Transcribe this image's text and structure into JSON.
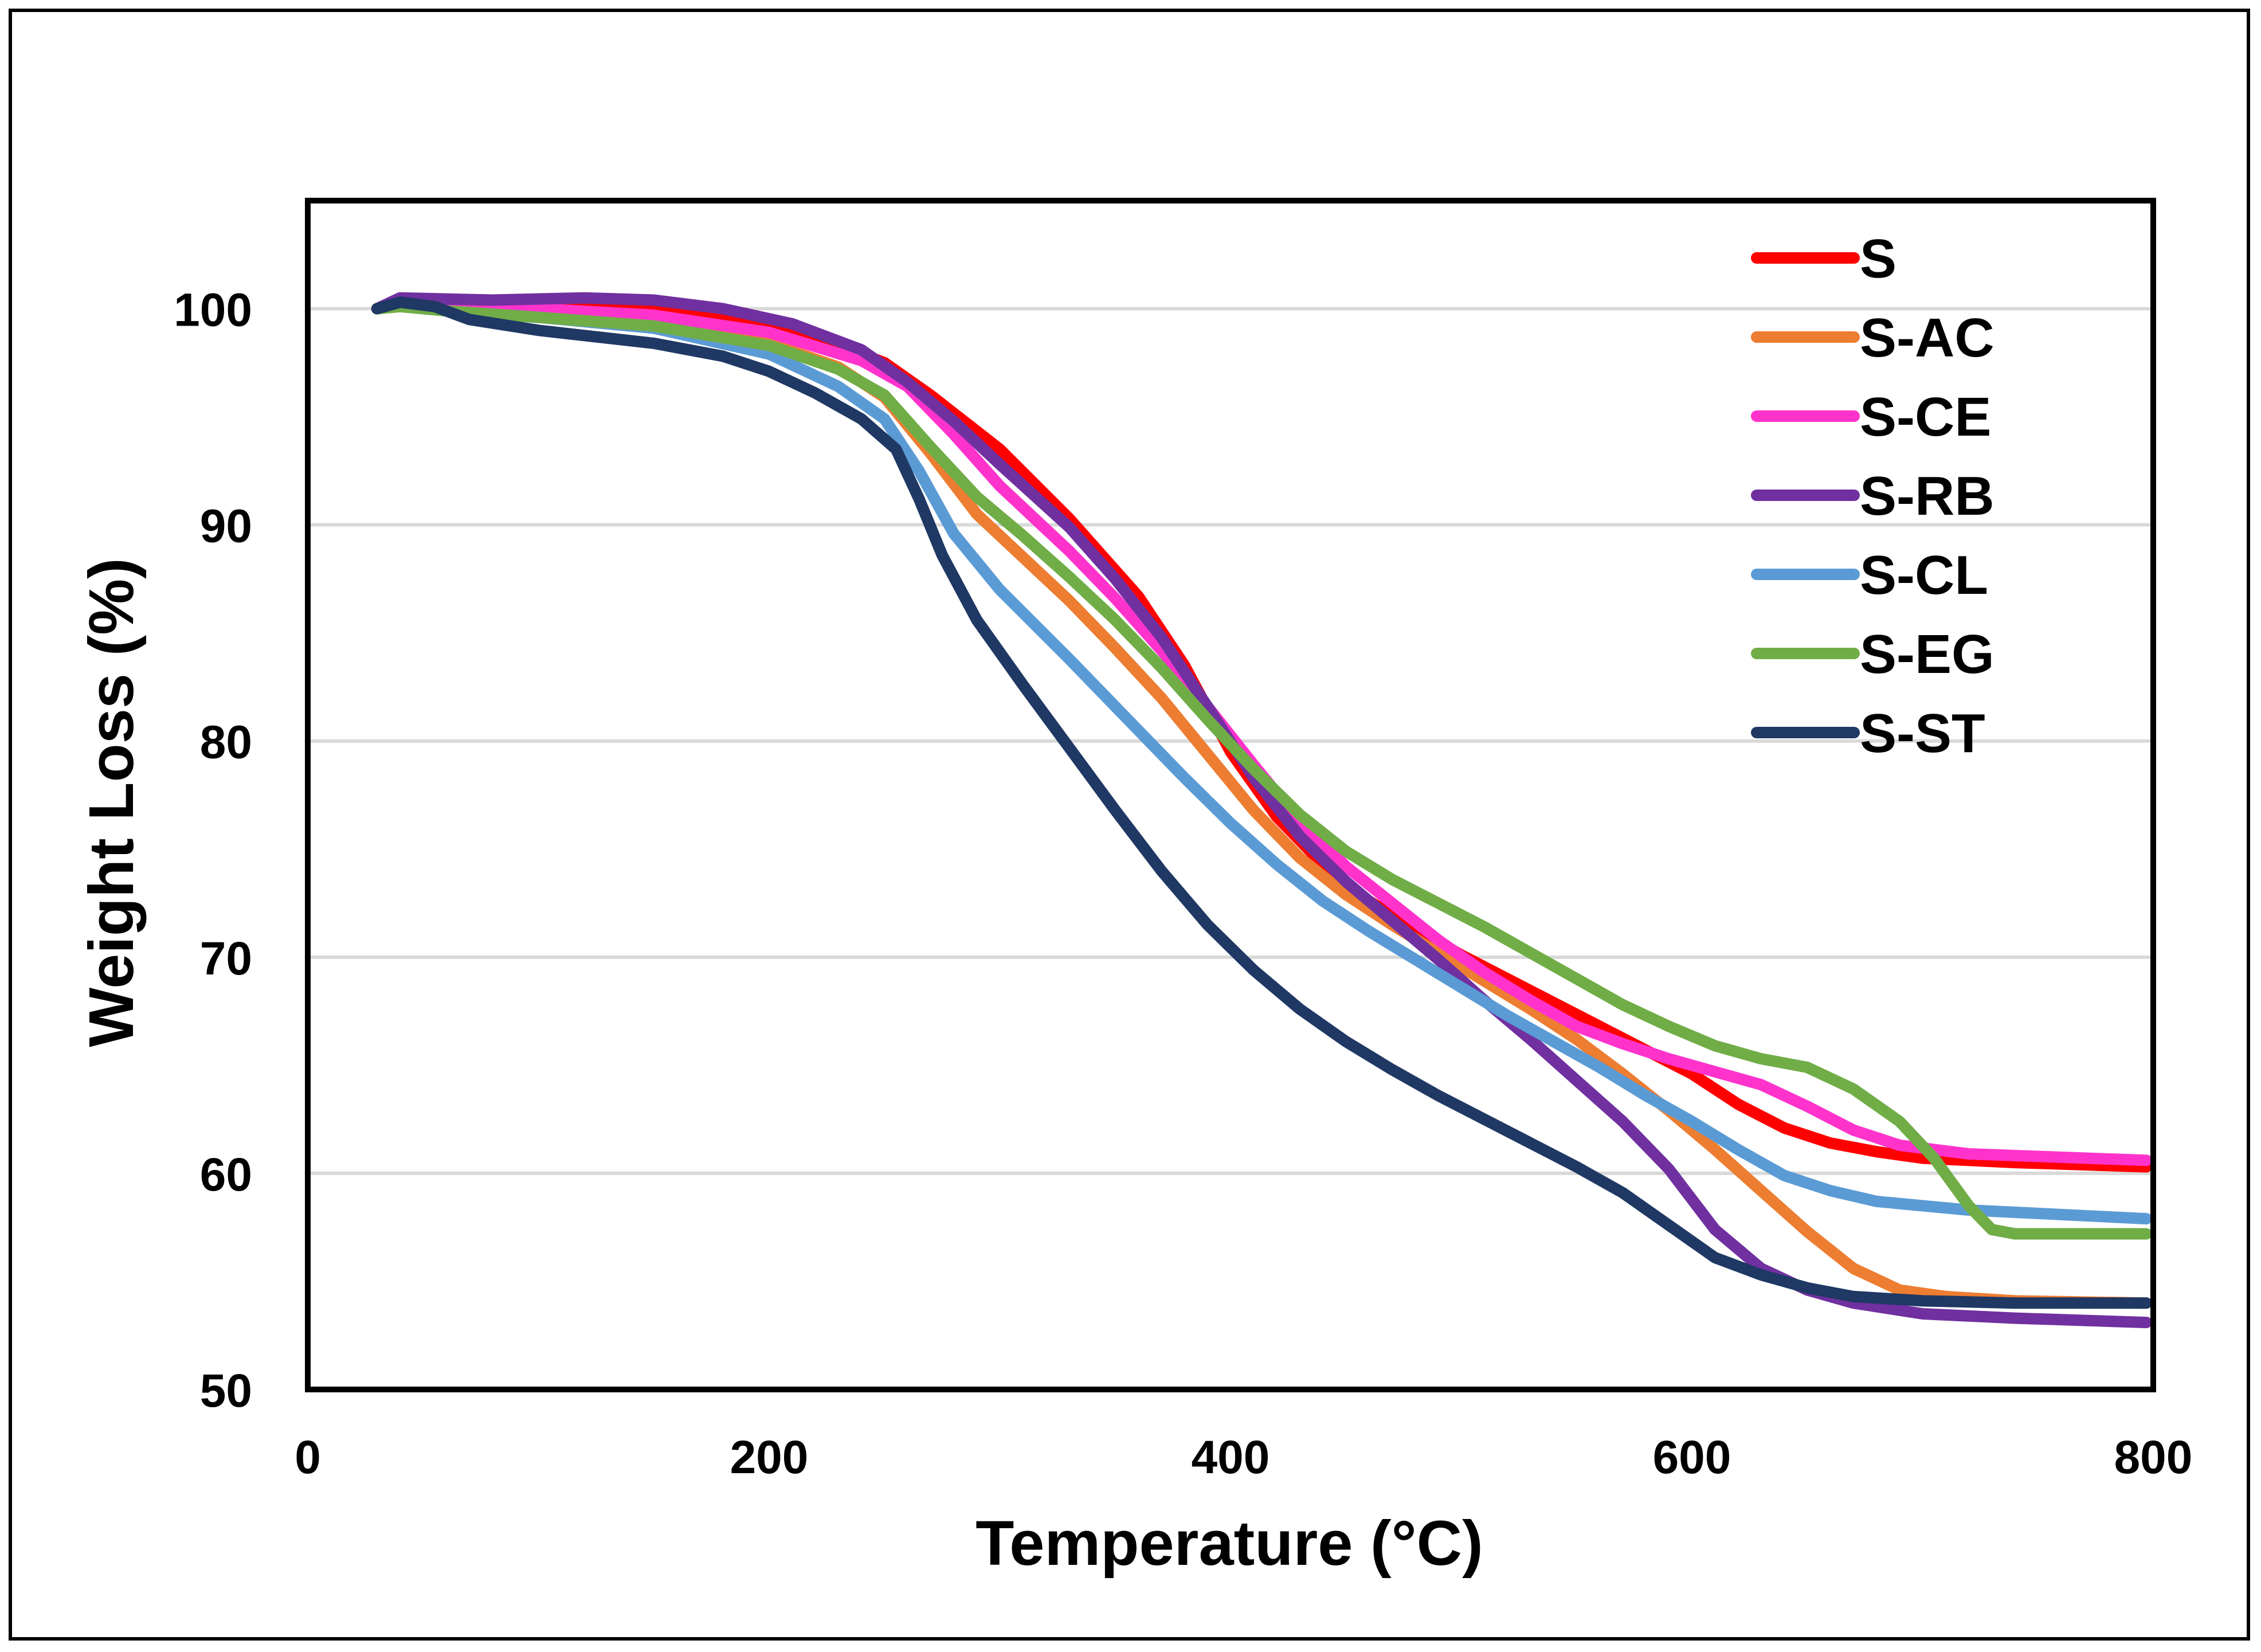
{
  "chart_data": {
    "type": "line",
    "title": "",
    "xlabel": "Temperature (°C)",
    "ylabel": "Weight Loss (%)",
    "xlim": [
      0,
      800
    ],
    "ylim": [
      50,
      105
    ],
    "x_ticks": [
      "0",
      "200",
      "400",
      "600",
      "800"
    ],
    "y_ticks": [
      "50",
      "60",
      "70",
      "80",
      "90",
      "100"
    ],
    "grid": "horizontal",
    "legend_position": "top-right",
    "series": [
      {
        "name": "S",
        "color": "#ff0000",
        "points": [
          [
            30,
            100
          ],
          [
            40,
            100.4
          ],
          [
            60,
            100.2
          ],
          [
            100,
            100.2
          ],
          [
            140,
            100.0
          ],
          [
            180,
            99.6
          ],
          [
            220,
            98.7
          ],
          [
            250,
            97.5
          ],
          [
            270,
            96.0
          ],
          [
            300,
            93.5
          ],
          [
            330,
            90.3
          ],
          [
            360,
            86.7
          ],
          [
            380,
            83.5
          ],
          [
            400,
            79.5
          ],
          [
            420,
            76.5
          ],
          [
            440,
            74.3
          ],
          [
            460,
            72.6
          ],
          [
            480,
            71.3
          ],
          [
            500,
            70.1
          ],
          [
            520,
            69.0
          ],
          [
            540,
            67.9
          ],
          [
            560,
            66.8
          ],
          [
            580,
            65.7
          ],
          [
            600,
            64.6
          ],
          [
            620,
            63.2
          ],
          [
            640,
            62.1
          ],
          [
            660,
            61.4
          ],
          [
            680,
            61.0
          ],
          [
            700,
            60.7
          ],
          [
            740,
            60.5
          ],
          [
            797,
            60.3
          ]
        ]
      },
      {
        "name": "S-AC",
        "color": "#ed7d31",
        "points": [
          [
            30,
            100
          ],
          [
            40,
            100.3
          ],
          [
            60,
            100.0
          ],
          [
            100,
            99.8
          ],
          [
            150,
            99.3
          ],
          [
            200,
            98.4
          ],
          [
            230,
            97.3
          ],
          [
            250,
            95.9
          ],
          [
            270,
            93.3
          ],
          [
            290,
            90.5
          ],
          [
            310,
            88.5
          ],
          [
            330,
            86.5
          ],
          [
            350,
            84.3
          ],
          [
            370,
            82.0
          ],
          [
            390,
            79.4
          ],
          [
            410,
            76.8
          ],
          [
            430,
            74.6
          ],
          [
            450,
            72.9
          ],
          [
            470,
            71.5
          ],
          [
            490,
            70.2
          ],
          [
            510,
            68.9
          ],
          [
            530,
            67.6
          ],
          [
            550,
            66.2
          ],
          [
            570,
            64.6
          ],
          [
            590,
            62.9
          ],
          [
            610,
            61.1
          ],
          [
            630,
            59.2
          ],
          [
            650,
            57.3
          ],
          [
            670,
            55.6
          ],
          [
            690,
            54.6
          ],
          [
            710,
            54.3
          ],
          [
            740,
            54.1
          ],
          [
            797,
            54.0
          ]
        ]
      },
      {
        "name": "S-CE",
        "color": "#ff33cc",
        "points": [
          [
            30,
            100
          ],
          [
            40,
            100.3
          ],
          [
            60,
            100.1
          ],
          [
            100,
            100.0
          ],
          [
            150,
            99.7
          ],
          [
            200,
            98.9
          ],
          [
            240,
            97.6
          ],
          [
            260,
            96.4
          ],
          [
            280,
            94.2
          ],
          [
            300,
            91.8
          ],
          [
            330,
            88.8
          ],
          [
            350,
            86.6
          ],
          [
            370,
            84.2
          ],
          [
            390,
            81.6
          ],
          [
            410,
            78.9
          ],
          [
            430,
            76.3
          ],
          [
            450,
            74.2
          ],
          [
            470,
            72.5
          ],
          [
            490,
            70.8
          ],
          [
            510,
            69.3
          ],
          [
            530,
            68.0
          ],
          [
            550,
            66.8
          ],
          [
            570,
            66.0
          ],
          [
            590,
            65.3
          ],
          [
            610,
            64.7
          ],
          [
            630,
            64.1
          ],
          [
            650,
            63.1
          ],
          [
            670,
            62.0
          ],
          [
            690,
            61.3
          ],
          [
            720,
            60.9
          ],
          [
            797,
            60.6
          ]
        ]
      },
      {
        "name": "S-RB",
        "color": "#7030a0",
        "points": [
          [
            30,
            100
          ],
          [
            40,
            100.5
          ],
          [
            80,
            100.4
          ],
          [
            120,
            100.5
          ],
          [
            150,
            100.4
          ],
          [
            180,
            100.0
          ],
          [
            210,
            99.3
          ],
          [
            240,
            98.1
          ],
          [
            260,
            96.6
          ],
          [
            280,
            94.8
          ],
          [
            300,
            92.8
          ],
          [
            330,
            89.9
          ],
          [
            350,
            87.5
          ],
          [
            370,
            84.8
          ],
          [
            390,
            81.6
          ],
          [
            410,
            78.3
          ],
          [
            430,
            75.6
          ],
          [
            450,
            73.5
          ],
          [
            470,
            71.7
          ],
          [
            490,
            69.9
          ],
          [
            510,
            68.0
          ],
          [
            530,
            66.2
          ],
          [
            550,
            64.3
          ],
          [
            570,
            62.4
          ],
          [
            590,
            60.2
          ],
          [
            610,
            57.4
          ],
          [
            630,
            55.6
          ],
          [
            650,
            54.6
          ],
          [
            670,
            54.0
          ],
          [
            700,
            53.5
          ],
          [
            740,
            53.3
          ],
          [
            797,
            53.1
          ]
        ]
      },
      {
        "name": "S-CL",
        "color": "#5b9bd5",
        "points": [
          [
            30,
            100
          ],
          [
            40,
            100.2
          ],
          [
            60,
            99.9
          ],
          [
            100,
            99.6
          ],
          [
            150,
            99.1
          ],
          [
            200,
            97.9
          ],
          [
            230,
            96.4
          ],
          [
            250,
            94.9
          ],
          [
            265,
            92.5
          ],
          [
            280,
            89.6
          ],
          [
            300,
            87.0
          ],
          [
            330,
            83.8
          ],
          [
            360,
            80.5
          ],
          [
            380,
            78.3
          ],
          [
            400,
            76.2
          ],
          [
            420,
            74.3
          ],
          [
            440,
            72.6
          ],
          [
            460,
            71.2
          ],
          [
            480,
            69.9
          ],
          [
            500,
            68.6
          ],
          [
            520,
            67.3
          ],
          [
            540,
            66.1
          ],
          [
            560,
            64.9
          ],
          [
            580,
            63.6
          ],
          [
            600,
            62.4
          ],
          [
            620,
            61.1
          ],
          [
            640,
            59.9
          ],
          [
            660,
            59.2
          ],
          [
            680,
            58.7
          ],
          [
            720,
            58.3
          ],
          [
            797,
            57.9
          ]
        ]
      },
      {
        "name": "S-EG",
        "color": "#70ad47",
        "points": [
          [
            30,
            100
          ],
          [
            40,
            100.1
          ],
          [
            60,
            99.9
          ],
          [
            100,
            99.6
          ],
          [
            150,
            99.2
          ],
          [
            200,
            98.3
          ],
          [
            230,
            97.2
          ],
          [
            250,
            96.0
          ],
          [
            270,
            93.6
          ],
          [
            290,
            91.3
          ],
          [
            310,
            89.5
          ],
          [
            330,
            87.6
          ],
          [
            350,
            85.6
          ],
          [
            370,
            83.4
          ],
          [
            390,
            81.0
          ],
          [
            410,
            78.7
          ],
          [
            430,
            76.6
          ],
          [
            450,
            74.9
          ],
          [
            470,
            73.6
          ],
          [
            490,
            72.5
          ],
          [
            510,
            71.4
          ],
          [
            530,
            70.2
          ],
          [
            550,
            69.0
          ],
          [
            570,
            67.8
          ],
          [
            590,
            66.8
          ],
          [
            610,
            65.9
          ],
          [
            630,
            65.3
          ],
          [
            650,
            64.9
          ],
          [
            670,
            63.9
          ],
          [
            690,
            62.4
          ],
          [
            705,
            60.7
          ],
          [
            720,
            58.5
          ],
          [
            730,
            57.4
          ],
          [
            740,
            57.2
          ],
          [
            797,
            57.2
          ]
        ]
      },
      {
        "name": "S-ST",
        "color": "#1f3864",
        "points": [
          [
            30,
            100
          ],
          [
            40,
            100.3
          ],
          [
            55,
            100.1
          ],
          [
            70,
            99.5
          ],
          [
            100,
            99.0
          ],
          [
            150,
            98.4
          ],
          [
            180,
            97.8
          ],
          [
            200,
            97.1
          ],
          [
            220,
            96.1
          ],
          [
            240,
            94.9
          ],
          [
            255,
            93.5
          ],
          [
            265,
            91.2
          ],
          [
            275,
            88.6
          ],
          [
            290,
            85.6
          ],
          [
            310,
            82.6
          ],
          [
            330,
            79.7
          ],
          [
            350,
            76.8
          ],
          [
            370,
            74.0
          ],
          [
            390,
            71.5
          ],
          [
            410,
            69.4
          ],
          [
            430,
            67.6
          ],
          [
            450,
            66.1
          ],
          [
            470,
            64.8
          ],
          [
            490,
            63.6
          ],
          [
            510,
            62.5
          ],
          [
            530,
            61.4
          ],
          [
            550,
            60.3
          ],
          [
            570,
            59.1
          ],
          [
            590,
            57.6
          ],
          [
            610,
            56.1
          ],
          [
            630,
            55.3
          ],
          [
            650,
            54.7
          ],
          [
            670,
            54.3
          ],
          [
            700,
            54.1
          ],
          [
            740,
            54.0
          ],
          [
            797,
            54.0
          ]
        ]
      }
    ]
  }
}
